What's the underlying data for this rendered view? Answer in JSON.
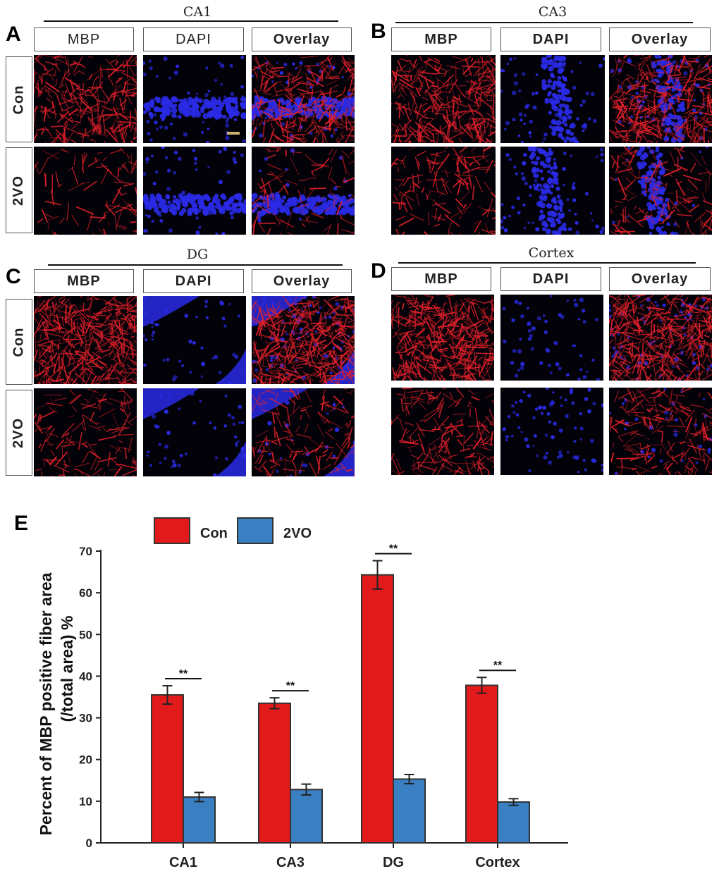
{
  "panels": [
    {
      "letter": "A",
      "region": "CA1",
      "columns": {
        "mbp": "MBP",
        "dapi": "DAPI",
        "overlay": "Overlay"
      },
      "rows": {
        "con": "Con",
        "vo": "2VO"
      }
    },
    {
      "letter": "B",
      "region": "CA3",
      "columns": {
        "mbp": "MBP",
        "dapi": "DAPI",
        "overlay": "Overlay"
      }
    },
    {
      "letter": "C",
      "region": "DG",
      "columns": {
        "mbp": "MBP",
        "dapi": "DAPI",
        "overlay": "Overlay"
      },
      "rows": {
        "con": "Con",
        "vo": "2VO"
      }
    },
    {
      "letter": "D",
      "region": "Cortex",
      "columns": {
        "mbp": "MBP",
        "dapi": "DAPI",
        "overlay": "Overlay"
      }
    }
  ],
  "colors": {
    "con": "#e31a1c",
    "vo": "#3a7fc1",
    "mbp": "#e0202a",
    "dapi": "#2a2ae6"
  },
  "chart_data": {
    "type": "bar",
    "panel_letter": "E",
    "categories": [
      "CA1",
      "CA3",
      "DG",
      "Cortex"
    ],
    "series": [
      {
        "name": "Con",
        "values": [
          35.5,
          33.5,
          64.3,
          37.8
        ],
        "errors": [
          2.2,
          1.3,
          3.4,
          1.9
        ]
      },
      {
        "name": "2VO",
        "values": [
          11.0,
          12.8,
          15.3,
          9.8
        ],
        "errors": [
          1.1,
          1.3,
          1.1,
          0.8
        ]
      }
    ],
    "significance": [
      "**",
      "**",
      "**",
      "**"
    ],
    "ylabel_line1": "Percent of MBP positive fiber area",
    "ylabel_line2": "(/total area) %",
    "ylim": [
      0,
      70
    ],
    "yticks": [
      0,
      10,
      20,
      30,
      40,
      50,
      60,
      70
    ],
    "legend_position": "top"
  }
}
